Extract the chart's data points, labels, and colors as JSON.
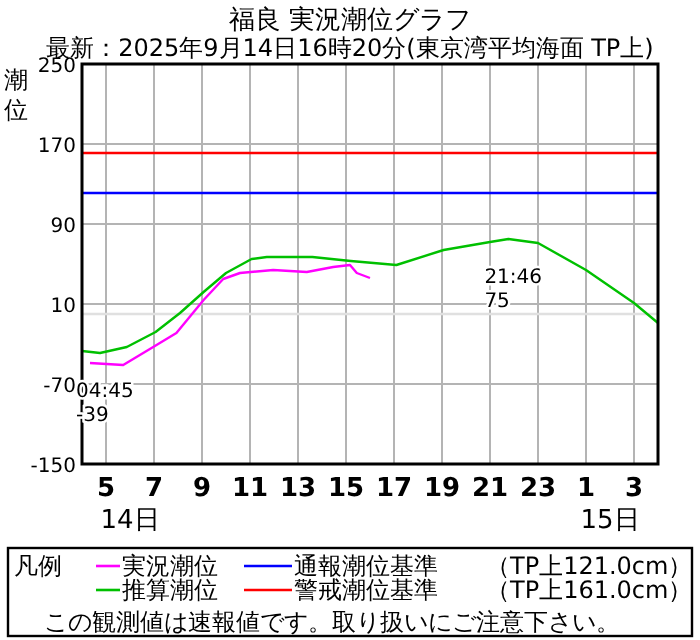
{
  "chart_data": {
    "type": "line",
    "title": "福良 実況潮位グラフ",
    "subtitle": "最新：2025年9月14日16時20分(東京湾平均海面 TP上)",
    "ylabel": "潮位",
    "legend_title": "凡例",
    "xlim": [
      "2025-09-14T04:00",
      "2025-09-15T04:00"
    ],
    "xticks": [
      {
        "value": "2025-09-14T05:00",
        "label": "5"
      },
      {
        "value": "2025-09-14T07:00",
        "label": "7"
      },
      {
        "value": "2025-09-14T09:00",
        "label": "9"
      },
      {
        "value": "2025-09-14T11:00",
        "label": "11"
      },
      {
        "value": "2025-09-14T13:00",
        "label": "13"
      },
      {
        "value": "2025-09-14T15:00",
        "label": "15"
      },
      {
        "value": "2025-09-14T17:00",
        "label": "17"
      },
      {
        "value": "2025-09-14T19:00",
        "label": "19"
      },
      {
        "value": "2025-09-14T21:00",
        "label": "21"
      },
      {
        "value": "2025-09-14T23:00",
        "label": "23"
      },
      {
        "value": "2025-09-15T01:00",
        "label": "1"
      },
      {
        "value": "2025-09-15T03:00",
        "label": "3"
      }
    ],
    "ylim": [
      -150,
      250
    ],
    "yticks": [
      -150,
      -70,
      10,
      90,
      170,
      250
    ],
    "grid": true,
    "legend": "bottom",
    "marker": "none",
    "line_style": "solid",
    "series": [
      {
        "name": "実況潮位",
        "color": "#ff00ff",
        "x": [
          "2025-09-14T04:20",
          "2025-09-14T05:43",
          "2025-09-14T06:58",
          "2025-09-14T07:56",
          "2025-09-14T09:04",
          "2025-09-14T09:53",
          "2025-09-14T10:35",
          "2025-09-14T11:58",
          "2025-09-14T13:22",
          "2025-09-14T14:28",
          "2025-09-14T15:10",
          "2025-09-14T15:27",
          "2025-09-14T16:00"
        ],
        "values": [
          -49,
          -51,
          -33,
          -19,
          14,
          35,
          41,
          44,
          42,
          47,
          49,
          41,
          36
        ]
      },
      {
        "name": "推算潮位",
        "color": "#00c000",
        "x": [
          "2025-09-14T04:00",
          "2025-09-14T04:45",
          "2025-09-14T05:52",
          "2025-09-14T07:04",
          "2025-09-14T08:05",
          "2025-09-14T09:04",
          "2025-09-14T10:00",
          "2025-09-14T11:04",
          "2025-09-14T11:42",
          "2025-09-14T13:36",
          "2025-09-14T15:12",
          "2025-09-14T17:06",
          "2025-09-14T19:04",
          "2025-09-14T21:00",
          "2025-09-14T21:46",
          "2025-09-14T23:00",
          "2025-09-15T01:00",
          "2025-09-15T03:00",
          "2025-09-15T04:00"
        ],
        "values": [
          -37,
          -39,
          -33,
          -18,
          1,
          22,
          41,
          55,
          57,
          57,
          53,
          49,
          64,
          72,
          75,
          71,
          44,
          11,
          -9
        ]
      }
    ],
    "ref_lines": [
      {
        "axis": "y",
        "value": 0,
        "color": "#e0e0e0"
      },
      {
        "axis": "y",
        "value": 121,
        "label": "通報潮位基準　　（TP上121.0cm）",
        "color": "#0000ff"
      },
      {
        "axis": "y",
        "value": 161,
        "label": "警戒潮位基準　　（TP上161.0cm）",
        "color": "#ff0000"
      }
    ],
    "annotations": [
      "14日",
      "15日",
      {
        "text": "04:45",
        "x": "2025-09-14T04:45",
        "y": -39
      },
      {
        "text": "-39",
        "x": "2025-09-14T04:45",
        "y": -39
      },
      {
        "text": "21:46",
        "x": "2025-09-14T21:46",
        "y": 75
      },
      {
        "text": "75",
        "x": "2025-09-14T21:46",
        "y": 75
      },
      "この観測値は速報値です。取り扱いにご注意下さい。"
    ]
  }
}
